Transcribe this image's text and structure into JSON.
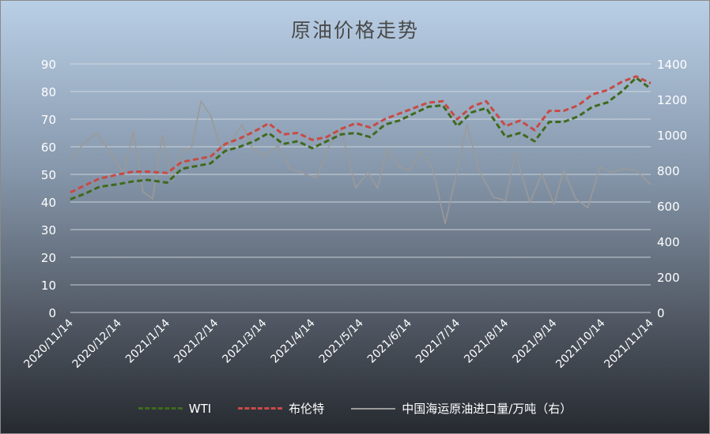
{
  "chart_data": {
    "type": "line",
    "title": "原油价格走势",
    "x_tick_labels": [
      "2020/11/14",
      "2020/12/14",
      "2021/1/14",
      "2021/2/14",
      "2021/3/14",
      "2021/4/14",
      "2021/5/14",
      "2021/6/14",
      "2021/7/14",
      "2021/8/14",
      "2021/9/14",
      "2021/10/14",
      "2021/11/14"
    ],
    "xlim": [
      0,
      12
    ],
    "y_left": {
      "lim": [
        0,
        90
      ],
      "ticks": [
        "0",
        "10",
        "20",
        "30",
        "40",
        "50",
        "60",
        "70",
        "80",
        "90"
      ]
    },
    "y_right": {
      "lim": [
        0,
        1400
      ],
      "ticks": [
        "0",
        "200",
        "400",
        "600",
        "800",
        "1000",
        "1200",
        "1400"
      ]
    },
    "grid": "horizontal",
    "legend": "bottom",
    "series": [
      {
        "name": "WTI",
        "axis": "left",
        "style": "dashed",
        "color": "#3f6a1c",
        "x": [
          0,
          0.3,
          0.6,
          1,
          1.3,
          1.6,
          2,
          2.3,
          2.6,
          2.9,
          3.2,
          3.5,
          3.8,
          4.1,
          4.4,
          4.7,
          5,
          5.3,
          5.6,
          5.9,
          6.2,
          6.5,
          6.8,
          7.1,
          7.4,
          7.7,
          8,
          8.3,
          8.6,
          9,
          9.3,
          9.6,
          9.9,
          10.2,
          10.5,
          10.8,
          11.1,
          11.4,
          11.7,
          12
        ],
        "values": [
          41,
          43,
          45.5,
          46.5,
          47.5,
          48,
          47,
          52,
          53,
          54,
          58.5,
          60,
          62,
          65,
          61,
          62,
          59.5,
          62,
          64.5,
          65,
          63.5,
          68,
          69.5,
          72,
          74.5,
          75,
          67.5,
          72.5,
          74,
          63.5,
          65,
          62,
          69,
          69,
          71,
          74.5,
          76,
          80,
          85,
          81
        ]
      },
      {
        "name": "布伦特",
        "axis": "left",
        "style": "dashed",
        "color": "#c94a45",
        "x": [
          0,
          0.3,
          0.6,
          1,
          1.3,
          1.6,
          2,
          2.3,
          2.6,
          2.9,
          3.2,
          3.5,
          3.8,
          4.1,
          4.4,
          4.7,
          5,
          5.3,
          5.6,
          5.9,
          6.2,
          6.5,
          6.8,
          7.1,
          7.4,
          7.7,
          8,
          8.3,
          8.6,
          9,
          9.3,
          9.6,
          9.9,
          10.2,
          10.5,
          10.8,
          11.1,
          11.4,
          11.7,
          12
        ],
        "values": [
          43.5,
          46,
          48.5,
          50,
          51,
          51,
          50.5,
          54.5,
          55.5,
          56.5,
          61,
          63,
          65.5,
          68.5,
          64.5,
          65,
          62.5,
          63.5,
          66.5,
          68.5,
          67,
          70,
          72,
          74,
          76,
          76.5,
          70,
          74.5,
          76.5,
          67.5,
          69.5,
          66,
          73,
          73,
          75,
          79,
          80.5,
          83.5,
          85.5,
          83
        ]
      },
      {
        "name": "中国海运原油进口量/万吨（右）",
        "axis": "right",
        "style": "solid",
        "color": "#9a9a9a",
        "x": [
          0,
          0.3,
          0.55,
          0.9,
          1.1,
          1.3,
          1.5,
          1.7,
          1.9,
          2.1,
          2.3,
          2.5,
          2.7,
          2.9,
          3.1,
          3.3,
          3.55,
          3.75,
          4,
          4.3,
          4.55,
          4.85,
          5.1,
          5.35,
          5.6,
          5.9,
          6.15,
          6.35,
          6.55,
          6.8,
          7,
          7.25,
          7.5,
          7.75,
          8,
          8.2,
          8.45,
          8.75,
          9,
          9.2,
          9.5,
          9.75,
          10,
          10.2,
          10.45,
          10.7,
          10.95,
          11.2,
          11.45,
          11.7,
          12
        ],
        "values": [
          860,
          960,
          1010,
          870,
          780,
          1020,
          680,
          640,
          1000,
          740,
          920,
          920,
          1190,
          1110,
          930,
          950,
          1060,
          930,
          880,
          940,
          810,
          780,
          760,
          940,
          1030,
          700,
          790,
          700,
          920,
          820,
          800,
          910,
          800,
          500,
          800,
          1060,
          800,
          650,
          630,
          900,
          620,
          780,
          610,
          800,
          640,
          590,
          820,
          790,
          810,
          800,
          720
        ]
      }
    ]
  }
}
